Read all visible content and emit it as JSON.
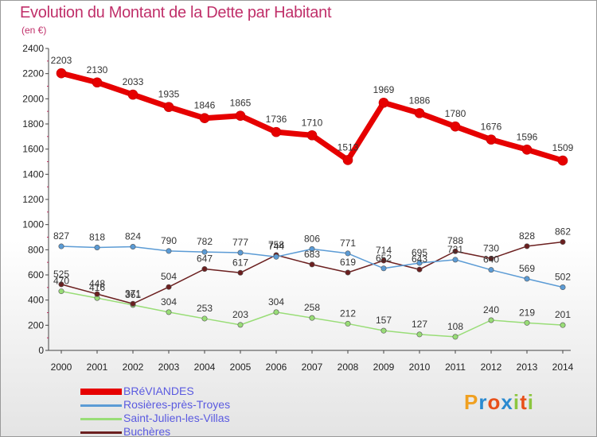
{
  "page": {
    "title": "Evolution du Montant de la Dette par Habitant",
    "unit": "(en €)"
  },
  "logo": {
    "text": "Proxiti",
    "letter_colors": [
      "#f0a020",
      "#2a8ad0",
      "#e8501a",
      "#2a8ad0",
      "#8cc63f",
      "#e8501a",
      "#8cc63f"
    ]
  },
  "chart_data": {
    "type": "line",
    "title": "Evolution du Montant de la Dette par Habitant",
    "ylabel": "(en €)",
    "xlabel": "",
    "x": [
      "2000",
      "2001",
      "2002",
      "2003",
      "2004",
      "2005",
      "2006",
      "2007",
      "2008",
      "2009",
      "2010",
      "2011",
      "2012",
      "2013",
      "2014"
    ],
    "y_ticks": [
      "0",
      "200",
      "400",
      "600",
      "800",
      "1000",
      "1200",
      "1400",
      "1600",
      "1800",
      "2000",
      "2200",
      "2400"
    ],
    "ylim": [
      0,
      2400
    ],
    "grid": false,
    "legend_position": "bottom-left",
    "series": [
      {
        "name": "BRéVIANDES",
        "color": "#e60000",
        "width": 7,
        "values": [
          2203,
          2130,
          2033,
          1935,
          1846,
          1865,
          1736,
          1710,
          1513,
          1969,
          1886,
          1780,
          1676,
          1596,
          1509
        ],
        "labels": [
          "2203",
          "2130",
          "2033",
          "1935",
          "1846",
          "1865",
          "1736",
          "1710",
          "1513",
          "1969",
          "1886",
          "1780",
          "1676",
          "1596",
          "1509"
        ]
      },
      {
        "name": "Rosières-près-Troyes",
        "color": "#5b9bd5",
        "width": 1.5,
        "values": [
          827,
          818,
          824,
          790,
          782,
          777,
          744,
          806,
          771,
          652,
          695,
          721,
          640,
          569,
          502
        ],
        "labels": [
          "827",
          "818",
          "824",
          "790",
          "782",
          "777",
          "744",
          "806",
          "771",
          "652",
          "695",
          "721",
          "640",
          "569",
          "502"
        ]
      },
      {
        "name": "Saint-Julien-les-Villas",
        "color": "#99dd77",
        "width": 1.5,
        "values": [
          470,
          416,
          361,
          304,
          253,
          203,
          304,
          258,
          212,
          157,
          127,
          108,
          240,
          219,
          201
        ],
        "labels": [
          "470",
          "416",
          "361",
          "304",
          "253",
          "203",
          "304",
          "258",
          "212",
          "157",
          "127",
          "108",
          "240",
          "219",
          "201"
        ]
      },
      {
        "name": "Buchères",
        "color": "#6b1f1f",
        "width": 1.5,
        "values": [
          525,
          448,
          371,
          504,
          647,
          617,
          758,
          683,
          619,
          714,
          643,
          788,
          730,
          828,
          862
        ],
        "labels": [
          "525",
          "448",
          "371",
          "504",
          "647",
          "617",
          "758",
          "683",
          "619",
          "714",
          "643",
          "788",
          "730",
          "828",
          "862"
        ]
      }
    ]
  }
}
